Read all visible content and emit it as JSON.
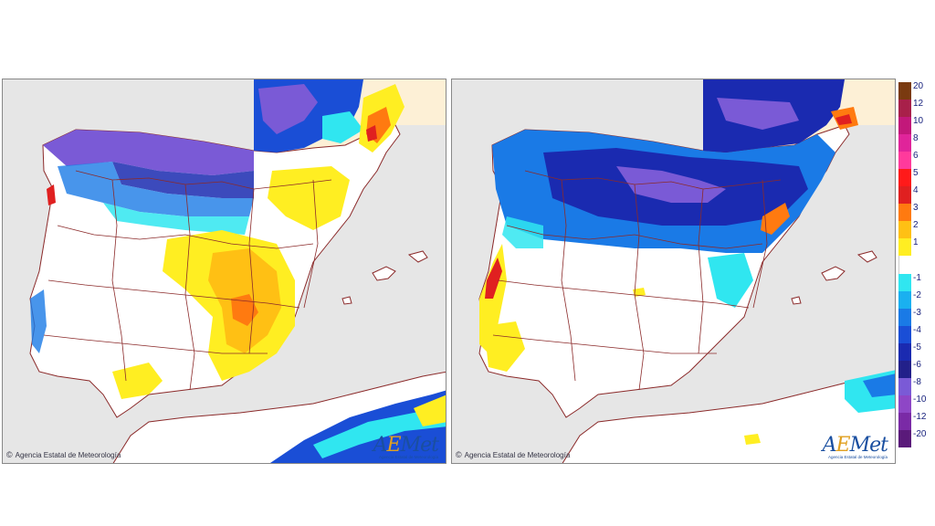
{
  "panels": [
    {
      "id": "left",
      "credit": "Agencia Estatal de Meteorología",
      "copyright": "©",
      "logo": "AEMet",
      "logo_sub": "Agencia Estatal de Meteorología"
    },
    {
      "id": "right",
      "credit": "Agencia Estatal de Meteorología",
      "copyright": "©",
      "logo": "AEMet",
      "logo_sub": "Agencia Estatal de Meteorología"
    }
  ],
  "legend": {
    "entries": [
      {
        "label": "20",
        "color": "#7a3a10"
      },
      {
        "label": "12",
        "color": "#a8204a"
      },
      {
        "label": "10",
        "color": "#c2187a"
      },
      {
        "label": "8",
        "color": "#e0249a"
      },
      {
        "label": "6",
        "color": "#ff3a9c"
      },
      {
        "label": "5",
        "color": "#ff1a1a"
      },
      {
        "label": "4",
        "color": "#e02020"
      },
      {
        "label": "3",
        "color": "#ff7a10"
      },
      {
        "label": "2",
        "color": "#ffc014"
      },
      {
        "label": "1",
        "color": "#ffee22"
      },
      {
        "label": "",
        "color": "#ffffff"
      },
      {
        "label": "-1",
        "color": "#30e6f0"
      },
      {
        "label": "-2",
        "color": "#1ab0f0"
      },
      {
        "label": "-3",
        "color": "#1a7ae6"
      },
      {
        "label": "-4",
        "color": "#1a4ed6"
      },
      {
        "label": "-5",
        "color": "#1a2ab0"
      },
      {
        "label": "-6",
        "color": "#22208a"
      },
      {
        "label": "-8",
        "color": "#7a5ad6"
      },
      {
        "label": "-10",
        "color": "#8e46c6"
      },
      {
        "label": "-12",
        "color": "#7a2aa6"
      },
      {
        "label": "-20",
        "color": "#5a1a7a"
      }
    ]
  },
  "colors": {
    "sea": "#e6e6e6",
    "land": "#ffffff",
    "border": "#8b2a2a",
    "france": "#fdf0d6"
  }
}
